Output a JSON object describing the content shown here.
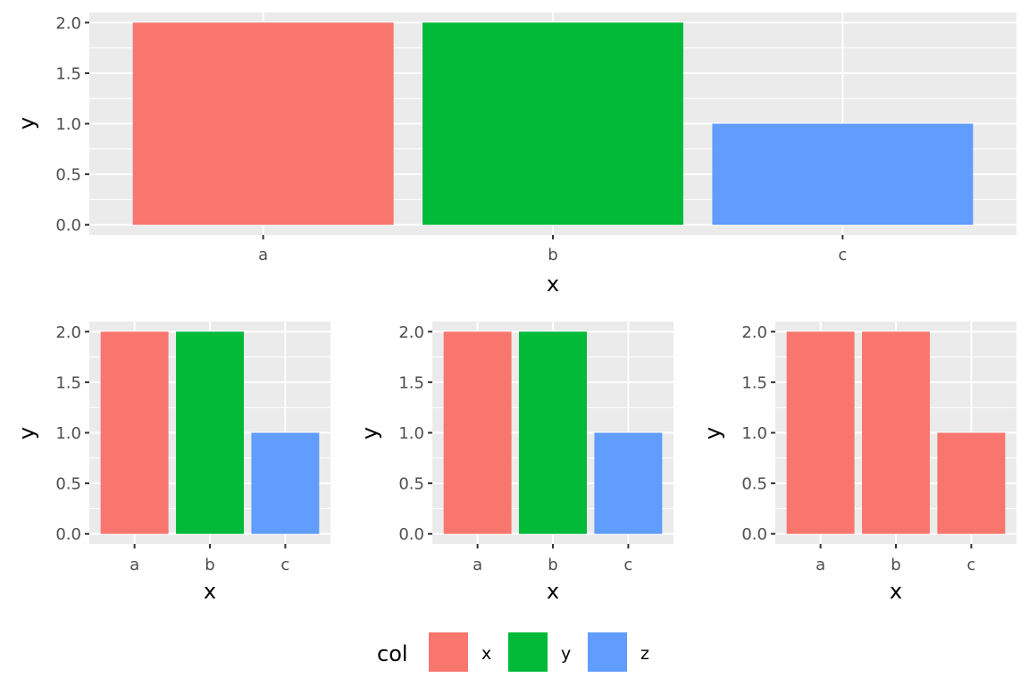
{
  "chart_data": [
    {
      "type": "bar",
      "categories": [
        "a",
        "b",
        "c"
      ],
      "values": [
        2,
        2,
        1
      ],
      "fill": [
        "x",
        "y",
        "z"
      ],
      "xlabel": "x",
      "ylabel": "y",
      "ylim": [
        0,
        2
      ],
      "yticks": [
        "0.0",
        "0.5",
        "1.0",
        "1.5",
        "2.0"
      ],
      "grid": true
    },
    {
      "type": "bar",
      "categories": [
        "a",
        "b",
        "c"
      ],
      "values": [
        2,
        2,
        1
      ],
      "fill": [
        "x",
        "y",
        "z"
      ],
      "xlabel": "x",
      "ylabel": "y",
      "ylim": [
        0,
        2
      ],
      "yticks": [
        "0.0",
        "0.5",
        "1.0",
        "1.5",
        "2.0"
      ],
      "grid": true
    },
    {
      "type": "bar",
      "categories": [
        "a",
        "b",
        "c"
      ],
      "values": [
        2,
        2,
        1
      ],
      "fill": [
        "x",
        "y",
        "z"
      ],
      "xlabel": "x",
      "ylabel": "y",
      "ylim": [
        0,
        2
      ],
      "yticks": [
        "0.0",
        "0.5",
        "1.0",
        "1.5",
        "2.0"
      ],
      "grid": true
    },
    {
      "type": "bar",
      "categories": [
        "a",
        "b",
        "c"
      ],
      "values": [
        2,
        2,
        1
      ],
      "fill": [
        "x",
        "x",
        "x"
      ],
      "xlabel": "x",
      "ylabel": "y",
      "ylim": [
        0,
        2
      ],
      "yticks": [
        "0.0",
        "0.5",
        "1.0",
        "1.5",
        "2.0"
      ],
      "grid": true
    }
  ],
  "legend": {
    "title": "col",
    "placement": "bottom",
    "entries": [
      {
        "key": "x",
        "label": "x",
        "color": "#F8766D"
      },
      {
        "key": "y",
        "label": "y",
        "color": "#00BA38"
      },
      {
        "key": "z",
        "label": "z",
        "color": "#619CFF"
      }
    ]
  },
  "colors": {
    "panel_background": "#EBEBEB",
    "grid_major": "#FFFFFF",
    "tick_text": "#4D4D4D",
    "tick_mark": "#333333"
  }
}
